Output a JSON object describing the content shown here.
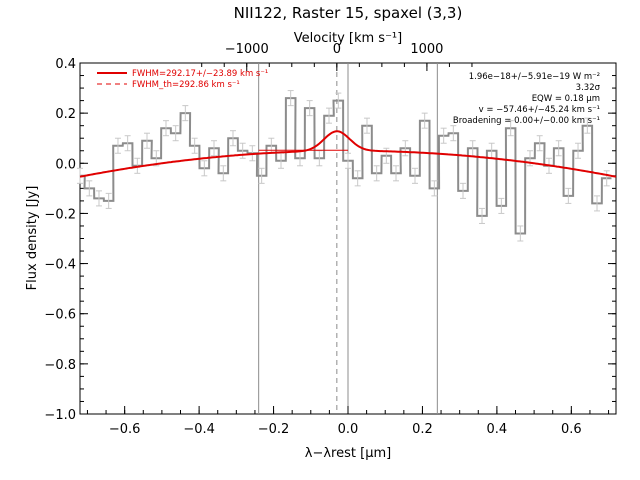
{
  "chart_data": {
    "type": "line",
    "title": "NII122, Raster 15, spaxel (3,3)",
    "xlabel": "λ−λrest [μm]",
    "ylabel": "Flux density [Jy]",
    "top_xlabel": "Velocity [km s⁻¹]",
    "xlim": [
      -0.72,
      0.72
    ],
    "ylim": [
      -1.0,
      0.4
    ],
    "x_ticks": [
      -0.6,
      -0.4,
      -0.2,
      0.0,
      0.2,
      0.4,
      0.6
    ],
    "x_tick_labels": [
      "−0.6",
      "−0.4",
      "−0.2",
      "0.0",
      "0.2",
      "0.4",
      "0.6"
    ],
    "y_ticks": [
      -1.0,
      -0.8,
      -0.6,
      -0.4,
      -0.2,
      0.0,
      0.2,
      0.4
    ],
    "y_tick_labels": [
      "−1.0",
      "−0.8",
      "−0.6",
      "−0.4",
      "−0.2",
      "0.0",
      "0.2",
      "0.4"
    ],
    "top_ticks_velocity": [
      -1000,
      0,
      1000
    ],
    "top_tick_labels": [
      "−1000",
      "0",
      "1000"
    ],
    "velocity_per_micron": 4132,
    "vertical_lines": [
      -0.24,
      0.0,
      0.24
    ],
    "dashed_vertical_line": -0.03,
    "legend": [
      {
        "label": "FWHM=292.17+/−23.89 km s⁻¹",
        "style": "solid"
      },
      {
        "label": "FWHM_th=292.86 km s⁻¹",
        "style": "dashed"
      }
    ],
    "annotations": [
      "1.96e−18+/−5.91e−19 W m⁻²",
      "3.32σ",
      "EQW = 0.18 μm",
      "v = −57.46+/−45.24 km s⁻¹",
      "Broadening = 0.00+/−0.00 km s⁻¹"
    ],
    "spectrum": {
      "name": "data",
      "color": "#8c8c8c",
      "bin_width": 0.0257,
      "x": [
        -0.72,
        -0.695,
        -0.669,
        -0.643,
        -0.618,
        -0.592,
        -0.566,
        -0.54,
        -0.515,
        -0.489,
        -0.463,
        -0.437,
        -0.412,
        -0.386,
        -0.36,
        -0.335,
        -0.309,
        -0.283,
        -0.257,
        -0.232,
        -0.206,
        -0.18,
        -0.154,
        -0.129,
        -0.103,
        -0.077,
        -0.051,
        -0.026,
        0.0,
        0.026,
        0.051,
        0.077,
        0.103,
        0.129,
        0.154,
        0.18,
        0.206,
        0.232,
        0.257,
        0.283,
        0.309,
        0.335,
        0.36,
        0.386,
        0.412,
        0.437,
        0.463,
        0.489,
        0.515,
        0.54,
        0.566,
        0.592,
        0.618,
        0.643,
        0.669,
        0.695
      ],
      "y": [
        -0.05,
        -0.1,
        -0.14,
        -0.15,
        0.07,
        0.08,
        -0.01,
        0.09,
        0.02,
        0.14,
        0.12,
        0.2,
        0.07,
        -0.02,
        0.06,
        -0.04,
        0.1,
        0.05,
        0.04,
        -0.05,
        0.07,
        0.01,
        0.26,
        0.02,
        0.22,
        0.02,
        0.19,
        0.25,
        0.01,
        -0.06,
        0.15,
        -0.04,
        0.03,
        -0.04,
        0.06,
        -0.05,
        0.17,
        -0.1,
        0.11,
        0.12,
        -0.11,
        0.06,
        -0.21,
        0.05,
        -0.17,
        0.14,
        -0.28,
        0.02,
        0.08,
        -0.01,
        0.06,
        -0.13,
        0.05,
        0.15,
        -0.16,
        -0.06
      ],
      "error": 0.03
    },
    "fit": {
      "name": "fit",
      "color": "#e00000",
      "baseline_poly": {
        "c0": 0.05,
        "c1": 0.0,
        "c2": -0.2
      },
      "gauss_center": -0.03,
      "gauss_amplitude": 0.078,
      "gauss_sigma": 0.034
    },
    "baseline_segment": {
      "x": [
        -0.24,
        0.0
      ],
      "y": [
        0.052,
        0.052
      ]
    }
  }
}
